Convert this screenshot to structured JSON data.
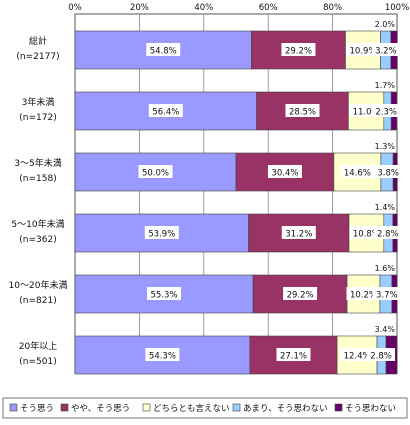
{
  "chart_data": {
    "type": "bar",
    "orientation": "horizontal",
    "stacked": "100%",
    "xlim": [
      0,
      100
    ],
    "ticks": [
      "0%",
      "20%",
      "40%",
      "60%",
      "80%",
      "100%"
    ],
    "grid": true,
    "legend_position": "bottom",
    "categories": [
      {
        "label": "総計",
        "n": "(n=2177)"
      },
      {
        "label": "3年未満",
        "n": "(n=172)"
      },
      {
        "label": "3〜5年未満",
        "n": "(n=158)"
      },
      {
        "label": "5〜10年未満",
        "n": "(n=362)"
      },
      {
        "label": "10〜20年未満",
        "n": "(n=821)"
      },
      {
        "label": "20年以上",
        "n": "(n=501)"
      }
    ],
    "series": [
      {
        "name": "そう思う",
        "color": "#9999ff",
        "values": [
          54.8,
          56.4,
          50.0,
          53.9,
          55.3,
          54.3
        ],
        "labels": [
          "54.8%",
          "56.4%",
          "50.0%",
          "53.9%",
          "55.3%",
          "54.3%"
        ]
      },
      {
        "name": "やや、そう思う",
        "color": "#993366",
        "values": [
          29.2,
          28.5,
          30.4,
          31.2,
          29.2,
          27.1
        ],
        "labels": [
          "29.2%",
          "28.5%",
          "30.4%",
          "31.2%",
          "29.2%",
          "27.1%"
        ]
      },
      {
        "name": "どちらとも言えない",
        "color": "#ffffcc",
        "values": [
          10.9,
          11.0,
          14.6,
          10.8,
          10.2,
          12.4
        ],
        "labels": [
          "10.9%",
          "11.0%",
          "14.6%",
          "10.8%",
          "10.2%",
          "12.4%"
        ]
      },
      {
        "name": "あまり、そう思わない",
        "color": "#99ccff",
        "values": [
          3.2,
          2.3,
          3.8,
          2.8,
          3.7,
          2.8
        ],
        "labels": [
          "3.2%",
          "2.3%",
          "3.8%",
          "2.8%",
          "3.7%",
          "2.8%"
        ]
      },
      {
        "name": "そう思わない",
        "color": "#660066",
        "values": [
          2.0,
          1.7,
          1.3,
          1.4,
          1.6,
          3.4
        ],
        "labels": [
          "2.0%",
          "1.7%",
          "1.3%",
          "1.4%",
          "1.6%",
          "3.4%"
        ]
      }
    ]
  }
}
